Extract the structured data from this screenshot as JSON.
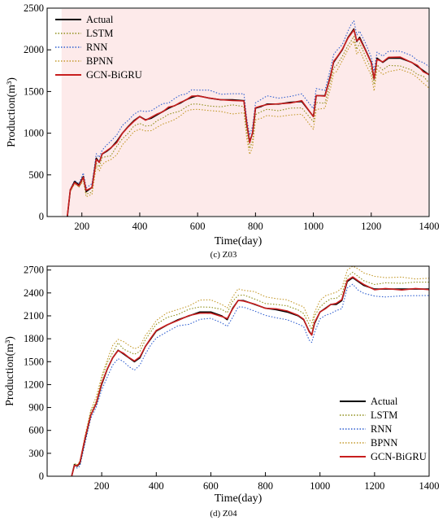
{
  "colors": {
    "Actual": "#000000",
    "LSTM": "#8f8f1a",
    "RNN": "#2f5fd0",
    "BPNN": "#c49a2c",
    "GCN-BiGRU": "#c81e1e",
    "shade": "#fdeaea"
  },
  "chart_data": [
    {
      "type": "line",
      "caption": "(c) Z03",
      "xlabel": "Time(day)",
      "ylabel": "Production(m³)",
      "xlim": [
        80,
        1400
      ],
      "ylim": [
        0,
        2500
      ],
      "xticks": [
        "200",
        "400",
        "600",
        "800",
        "1000",
        "1200",
        "1400"
      ],
      "yticks": [
        "0",
        "500",
        "1000",
        "1500",
        "2000",
        "2500"
      ],
      "legend_position": "top-left",
      "series_names": [
        "Actual",
        "LSTM",
        "RNN",
        "BPNN",
        "GCN-BiGRU"
      ],
      "actual": {
        "x": [
          150,
          160,
          175,
          190,
          205,
          215,
          235,
          250,
          260,
          270,
          285,
          300,
          320,
          340,
          360,
          380,
          400,
          420,
          440,
          460,
          480,
          500,
          520,
          540,
          560,
          580,
          600,
          640,
          680,
          720,
          760,
          770,
          780,
          790,
          800,
          820,
          840,
          880,
          920,
          960,
          1000,
          1010,
          1040,
          1060,
          1070,
          1080,
          1100,
          1120,
          1130,
          1140,
          1150,
          1160,
          1180,
          1200,
          1210,
          1220,
          1240,
          1260,
          1300,
          1340,
          1360,
          1380,
          1400
        ],
        "y": [
          0,
          320,
          420,
          380,
          480,
          300,
          350,
          700,
          650,
          750,
          780,
          820,
          900,
          1000,
          1080,
          1150,
          1200,
          1160,
          1180,
          1220,
          1260,
          1300,
          1330,
          1360,
          1400,
          1430,
          1450,
          1420,
          1400,
          1400,
          1390,
          1100,
          900,
          1000,
          1300,
          1320,
          1350,
          1350,
          1370,
          1380,
          1200,
          1450,
          1450,
          1700,
          1850,
          1900,
          2000,
          2150,
          2200,
          2250,
          2100,
          2150,
          2000,
          1850,
          1650,
          1900,
          1850,
          1900,
          1900,
          1850,
          1800,
          1750,
          1700
        ]
      },
      "model_offsets": {
        "LSTM": -80,
        "RNN": 80,
        "BPNN": -150,
        "GCN-BiGRU": 0
      }
    },
    {
      "type": "line",
      "caption": "(d) Z04",
      "xlabel": "Time(day)",
      "ylabel": "Production(m³)",
      "xlim": [
        0,
        1400
      ],
      "ylim": [
        0,
        2750
      ],
      "xticks": [
        "200",
        "400",
        "600",
        "800",
        "1000",
        "1200",
        "1400"
      ],
      "yticks": [
        "0",
        "300",
        "600",
        "900",
        "1200",
        "1500",
        "1800",
        "2100",
        "2400",
        "2700"
      ],
      "legend_position": "bottom-right",
      "series_names": [
        "Actual",
        "LSTM",
        "RNN",
        "BPNN",
        "GCN-BiGRU"
      ],
      "actual": {
        "x": [
          90,
          100,
          110,
          120,
          140,
          160,
          180,
          200,
          220,
          240,
          260,
          280,
          300,
          320,
          340,
          360,
          380,
          400,
          440,
          480,
          520,
          560,
          600,
          640,
          660,
          680,
          700,
          720,
          760,
          800,
          840,
          880,
          920,
          940,
          960,
          970,
          980,
          1000,
          1020,
          1040,
          1060,
          1080,
          1100,
          1120,
          1140,
          1160,
          1200,
          1240,
          1300,
          1350,
          1400
        ],
        "y": [
          0,
          150,
          130,
          170,
          500,
          800,
          950,
          1200,
          1400,
          1550,
          1650,
          1600,
          1550,
          1500,
          1550,
          1700,
          1800,
          1900,
          1980,
          2050,
          2100,
          2150,
          2150,
          2100,
          2050,
          2200,
          2300,
          2300,
          2250,
          2200,
          2180,
          2150,
          2100,
          2050,
          1900,
          1850,
          2000,
          2150,
          2200,
          2250,
          2250,
          2300,
          2550,
          2600,
          2550,
          2500,
          2450,
          2450,
          2450,
          2450,
          2450
        ]
      },
      "model_offsets": {
        "LSTM": 80,
        "RNN": -100,
        "BPNN": 150,
        "GCN-BiGRU": 0
      }
    }
  ]
}
